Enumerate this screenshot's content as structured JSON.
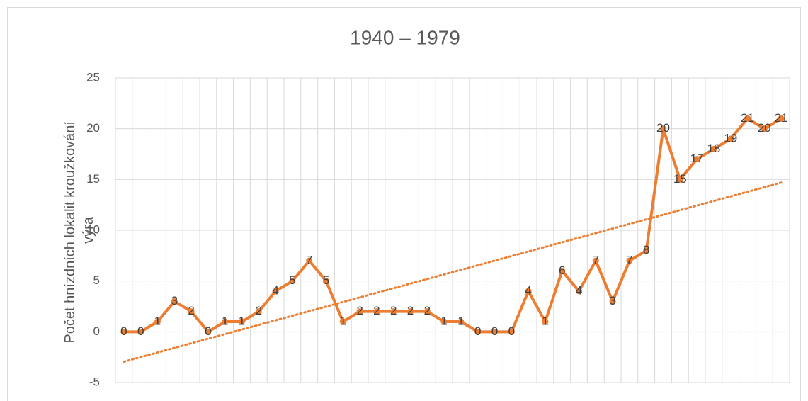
{
  "chart_data": {
    "type": "line",
    "title": "1940 – 1979",
    "ylabel": "Počet hnízdních lokalit kroužkování výra",
    "categories": [
      null,
      null,
      null,
      null,
      null,
      null,
      null,
      null,
      null,
      null,
      null,
      null,
      null,
      null,
      null,
      null,
      null,
      null,
      null,
      null,
      null,
      null,
      null,
      null,
      null,
      null,
      null,
      null,
      null,
      null,
      null,
      null,
      null,
      null,
      null,
      null,
      null,
      null,
      null,
      null
    ],
    "series": [
      {
        "name": null,
        "color": "#ed7d31",
        "values": [
          0,
          0,
          1,
          3,
          2,
          0,
          1,
          1,
          2,
          4,
          5,
          7,
          5,
          1,
          2,
          2,
          2,
          2,
          2,
          1,
          1,
          0,
          0,
          0,
          4,
          1,
          6,
          4,
          7,
          3,
          7,
          8,
          20,
          15,
          17,
          18,
          19,
          21,
          20,
          21
        ]
      }
    ],
    "ylim": [
      -5,
      25
    ],
    "yticks": [
      -5,
      0,
      5,
      10,
      15,
      20,
      25
    ],
    "grid": true,
    "trendline": "linear",
    "data_labels": true
  }
}
